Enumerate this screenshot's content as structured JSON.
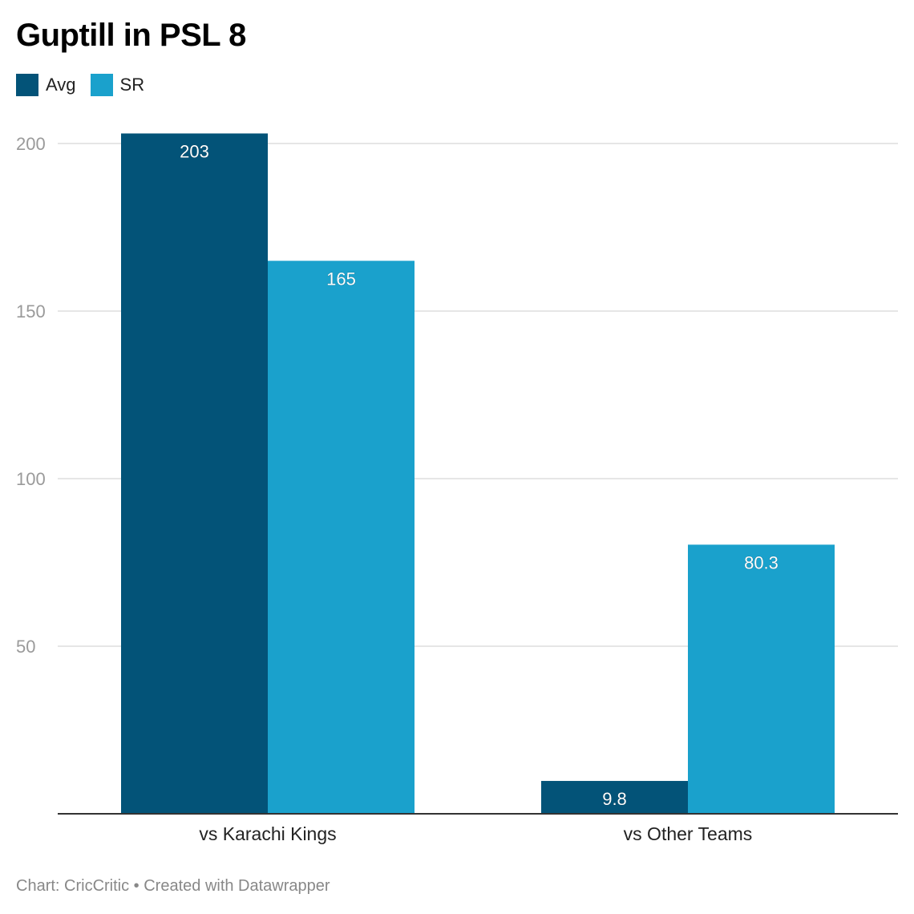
{
  "title": "Guptill in PSL 8",
  "footer": "Chart: CricCritic • Created with Datawrapper",
  "legend": [
    {
      "name": "Avg",
      "color": "#035378"
    },
    {
      "name": "SR",
      "color": "#1aa1cc"
    }
  ],
  "chart_data": {
    "type": "bar",
    "categories": [
      "vs Karachi Kings",
      "vs Other Teams"
    ],
    "series": [
      {
        "name": "Avg",
        "values": [
          203,
          9.8
        ],
        "labels": [
          "203",
          "9.8"
        ],
        "color": "#035378"
      },
      {
        "name": "SR",
        "values": [
          165,
          80.3
        ],
        "labels": [
          "165",
          "80.3"
        ],
        "color": "#1aa1cc"
      }
    ],
    "title": "Guptill in PSL 8",
    "xlabel": "",
    "ylabel": "",
    "ylim": [
      0,
      200
    ],
    "yticks": [
      50,
      100,
      150,
      200
    ],
    "grid": true,
    "legend_position": "top-left"
  }
}
